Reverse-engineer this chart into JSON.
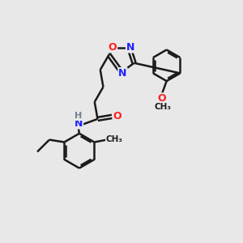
{
  "background_color": "#e8e8e8",
  "bond_color": "#1a1a1a",
  "bond_width": 1.8,
  "atom_colors": {
    "N": "#2020ff",
    "O": "#ff2020",
    "H": "#708090",
    "C": "#1a1a1a"
  },
  "fig_size": [
    3.0,
    3.0
  ],
  "dpi": 100,
  "xlim": [
    0,
    10
  ],
  "ylim": [
    0,
    10
  ]
}
